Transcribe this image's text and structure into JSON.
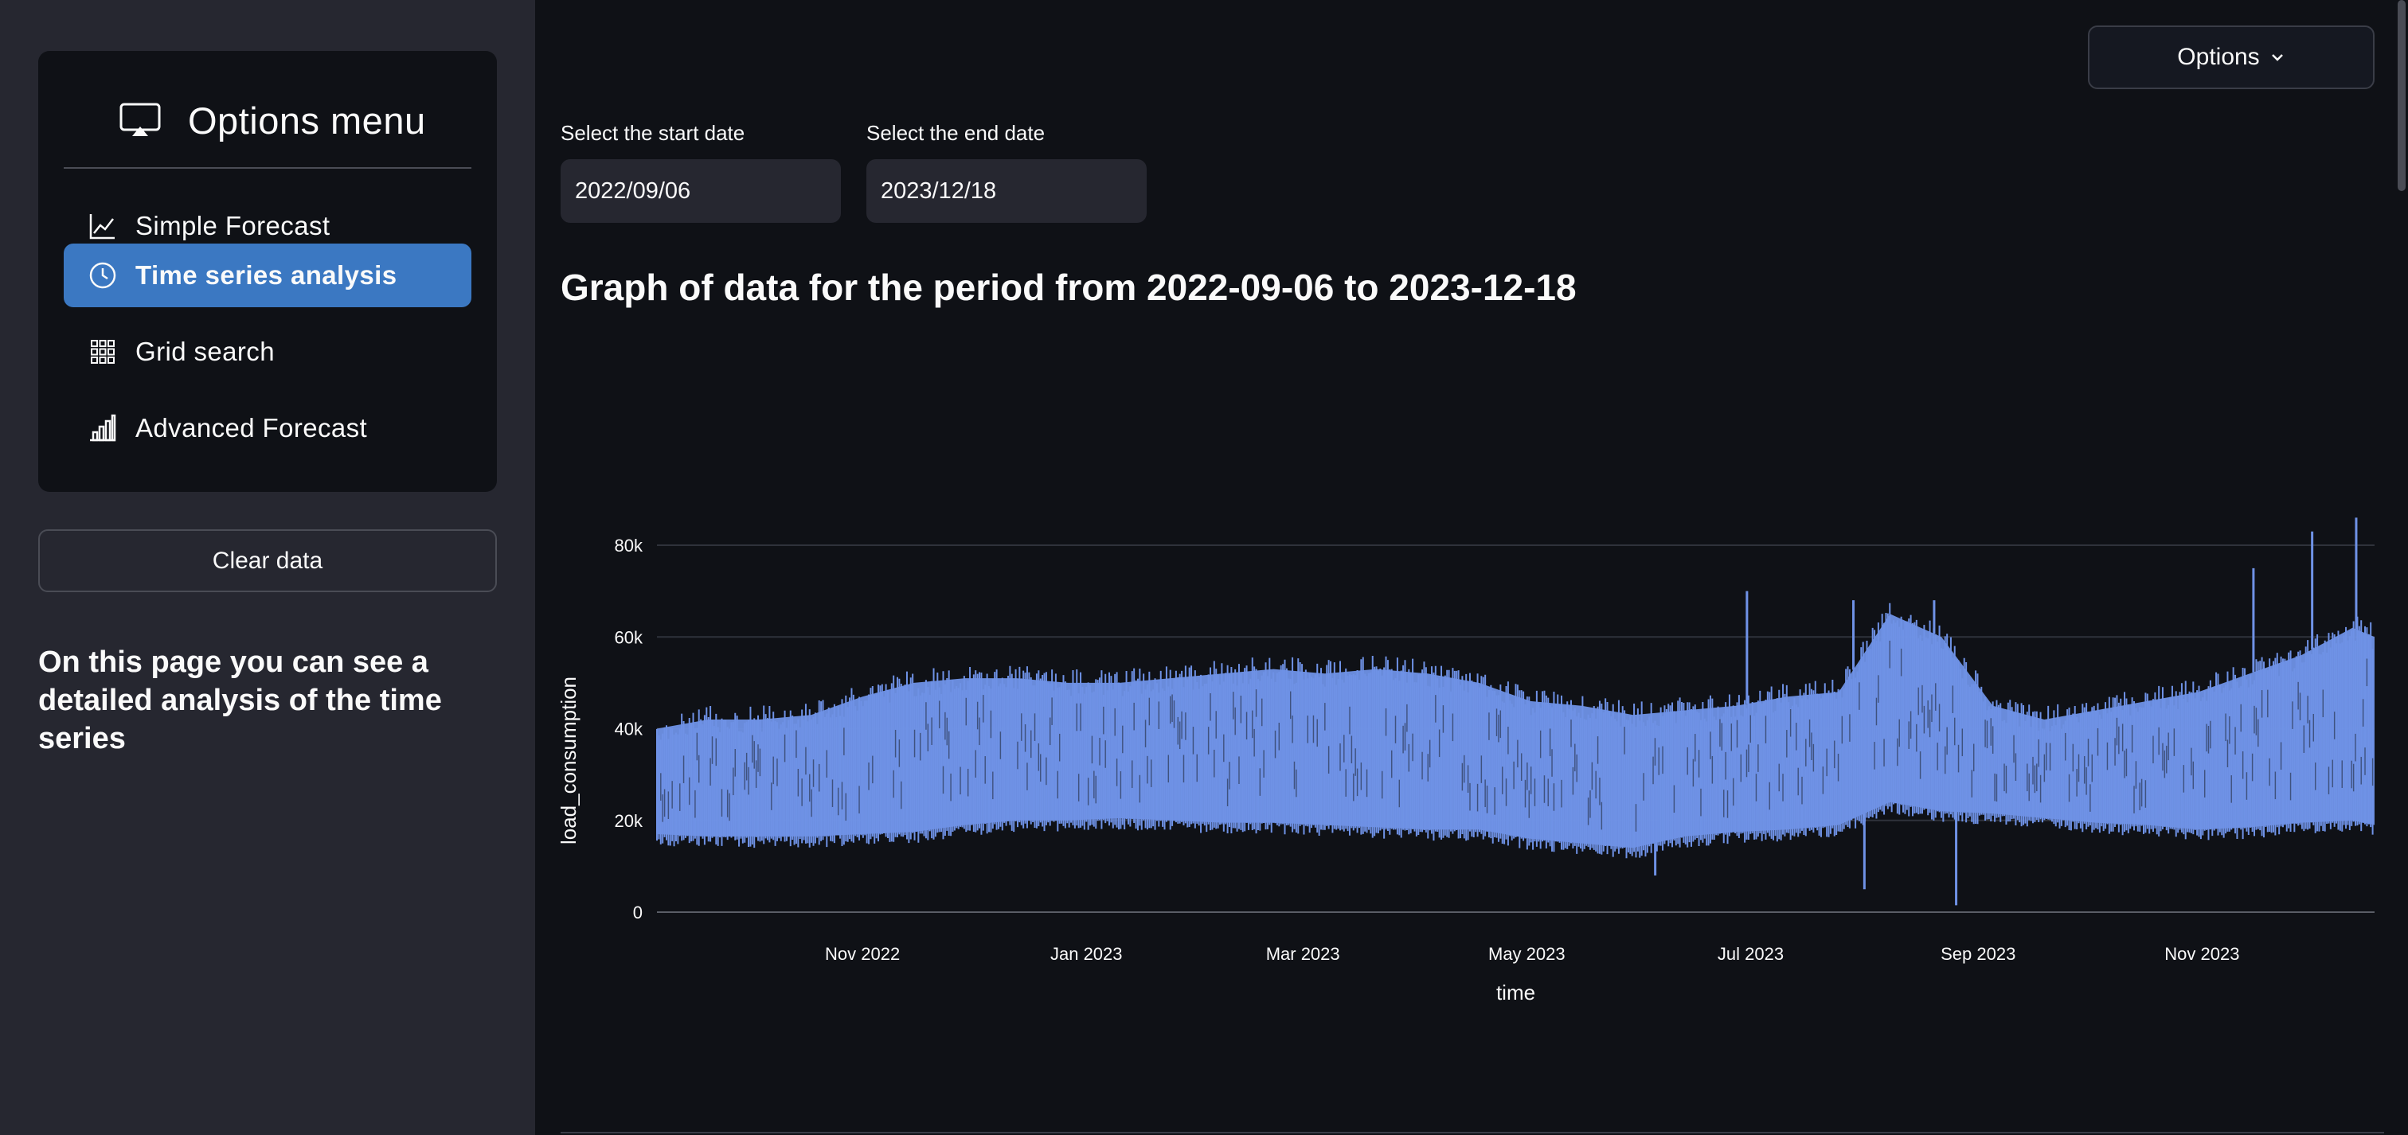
{
  "sidebar": {
    "menu_title": "Options menu",
    "menu_icon": "cast-icon",
    "items": [
      {
        "label": "Simple Forecast",
        "icon": "line-chart-icon",
        "active": false
      },
      {
        "label": "Time series analysis",
        "icon": "clock-icon",
        "active": true
      },
      {
        "label": "Grid search",
        "icon": "grid-icon",
        "active": false
      },
      {
        "label": "Advanced Forecast",
        "icon": "bar-chart-icon",
        "active": false
      }
    ],
    "clear_button": "Clear data",
    "description": "On this page you can see a detailed analysis of the time series"
  },
  "header": {
    "options_label": "Options"
  },
  "dates": {
    "start_label": "Select the start date",
    "start_value": "2022/09/06",
    "end_label": "Select the end date",
    "end_value": "2023/12/18"
  },
  "chart_title": "Graph of data for the period from 2022-09-06 to 2023-12-18",
  "colors": {
    "accent": "#3b78c2",
    "series": "#6f92e6",
    "background": "#0f1116",
    "sidebar": "#262730"
  },
  "chart_data": {
    "type": "area",
    "xlabel": "time",
    "ylabel": "load_consumption",
    "x_range": [
      "2022-09-06",
      "2023-12-18"
    ],
    "ylim": [
      0,
      80000
    ],
    "y_ticks": [
      {
        "value": 0,
        "label": "0"
      },
      {
        "value": 20000,
        "label": "20k"
      },
      {
        "value": 40000,
        "label": "40k"
      },
      {
        "value": 60000,
        "label": "60k"
      },
      {
        "value": 80000,
        "label": "80k"
      }
    ],
    "x_ticks": [
      {
        "date": "2022-11-01",
        "label": "Nov 2022"
      },
      {
        "date": "2023-01-01",
        "label": "Jan 2023"
      },
      {
        "date": "2023-03-01",
        "label": "Mar 2023"
      },
      {
        "date": "2023-05-01",
        "label": "May 2023"
      },
      {
        "date": "2023-07-01",
        "label": "Jul 2023"
      },
      {
        "date": "2023-09-01",
        "label": "Sep 2023"
      },
      {
        "date": "2023-11-01",
        "label": "Nov 2023"
      }
    ],
    "grid": true,
    "series": [
      {
        "x": [
          "2022-09-06",
          "2022-09-20",
          "2022-10-04",
          "2022-10-18",
          "2022-11-01",
          "2022-11-15",
          "2022-11-29",
          "2022-12-13",
          "2022-12-27",
          "2023-01-10",
          "2023-01-24",
          "2023-02-07",
          "2023-02-21",
          "2023-03-07",
          "2023-03-21",
          "2023-04-04",
          "2023-04-18",
          "2023-05-02",
          "2023-05-16",
          "2023-05-30",
          "2023-06-13",
          "2023-06-27",
          "2023-07-11",
          "2023-07-25",
          "2023-08-08",
          "2023-08-22",
          "2023-09-05",
          "2023-09-19",
          "2023-10-03",
          "2023-10-17",
          "2023-10-31",
          "2023-11-14",
          "2023-11-28",
          "2023-12-12",
          "2023-12-18"
        ],
        "low": [
          17000,
          16500,
          16500,
          16500,
          17000,
          17500,
          19000,
          20000,
          20000,
          20500,
          20000,
          19500,
          19500,
          19000,
          18500,
          18000,
          18000,
          16000,
          15000,
          14000,
          16500,
          17500,
          18000,
          19000,
          24000,
          22000,
          21500,
          20500,
          19500,
          19000,
          18000,
          18500,
          19500,
          20000,
          19000
        ],
        "high": [
          40000,
          42000,
          42000,
          43000,
          47000,
          50000,
          51000,
          51000,
          50000,
          50000,
          51000,
          52000,
          53000,
          52000,
          53000,
          52000,
          50000,
          46000,
          45000,
          43000,
          44000,
          45000,
          47000,
          48000,
          65000,
          60000,
          45000,
          42000,
          44000,
          46000,
          48000,
          52000,
          56000,
          62000,
          60000
        ],
        "spikes": [
          {
            "x": "2023-06-30",
            "y": 70000
          },
          {
            "x": "2023-07-29",
            "y": 68000
          },
          {
            "x": "2023-08-20",
            "y": 68000
          },
          {
            "x": "2023-11-15",
            "y": 75000
          },
          {
            "x": "2023-12-01",
            "y": 83000
          },
          {
            "x": "2023-12-13",
            "y": 86000
          },
          {
            "x": "2023-08-01",
            "y": 5000
          },
          {
            "x": "2023-08-26",
            "y": 1500
          },
          {
            "x": "2023-06-05",
            "y": 8000
          }
        ]
      }
    ]
  }
}
